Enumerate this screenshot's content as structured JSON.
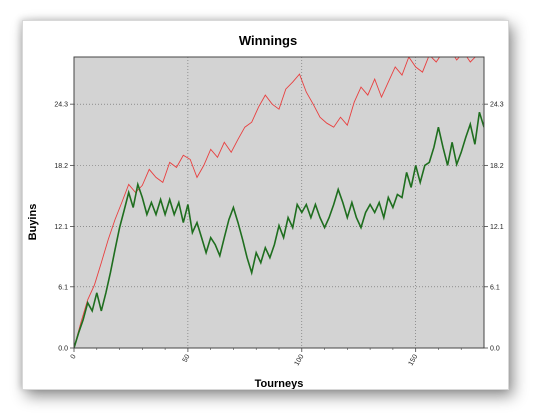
{
  "chart_data": {
    "type": "line",
    "title": "Winnings",
    "xlabel": "Tourneys",
    "ylabel": "Buyins",
    "xlim": [
      0,
      180
    ],
    "ylim": [
      0,
      29
    ],
    "x_ticks": [
      "0",
      "50",
      "100",
      "150"
    ],
    "y_ticks": [
      "0.0",
      "6.1",
      "12.1",
      "18.2",
      "24.3"
    ],
    "grid": true,
    "series": [
      {
        "color": "#e84040",
        "x": [
          0,
          3,
          6,
          9,
          12,
          15,
          18,
          21,
          24,
          27,
          30,
          33,
          36,
          39,
          42,
          45,
          48,
          51,
          54,
          57,
          60,
          63,
          66,
          69,
          72,
          75,
          78,
          81,
          84,
          87,
          90,
          93,
          96,
          99,
          102,
          105,
          108,
          111,
          114,
          117,
          120,
          123,
          126,
          129,
          132,
          135,
          138,
          141,
          144,
          147,
          150,
          153,
          156,
          159,
          162,
          165,
          168,
          171,
          174,
          177,
          180
        ],
        "y": [
          0,
          2.5,
          4.8,
          6.3,
          8.5,
          10.8,
          12.8,
          14.5,
          16.3,
          15.5,
          16.2,
          17.8,
          17.0,
          16.5,
          18.5,
          18.0,
          19.2,
          18.8,
          17.0,
          18.2,
          19.8,
          19.0,
          20.5,
          19.5,
          20.8,
          22.0,
          22.5,
          24.0,
          25.2,
          24.3,
          23.8,
          25.8,
          26.5,
          27.3,
          25.5,
          24.3,
          23.0,
          22.4,
          22.0,
          23.0,
          22.2,
          24.5,
          26.0,
          25.2,
          26.8,
          25.0,
          26.5,
          28.0,
          27.2,
          29.0,
          28.0,
          27.5,
          29.2,
          28.5,
          29.5,
          29.8,
          28.7,
          29.5,
          28.5,
          29.2,
          30.0
        ]
      },
      {
        "color": "#1f6e1f",
        "x": [
          0,
          2,
          4,
          6,
          8,
          10,
          12,
          14,
          16,
          18,
          20,
          22,
          24,
          26,
          28,
          30,
          32,
          34,
          36,
          38,
          40,
          42,
          44,
          46,
          48,
          50,
          52,
          54,
          56,
          58,
          60,
          62,
          64,
          66,
          68,
          70,
          72,
          74,
          76,
          78,
          80,
          82,
          84,
          86,
          88,
          90,
          92,
          94,
          96,
          98,
          100,
          102,
          104,
          106,
          108,
          110,
          112,
          114,
          116,
          118,
          120,
          122,
          124,
          126,
          128,
          130,
          132,
          134,
          136,
          138,
          140,
          142,
          144,
          146,
          148,
          150,
          152,
          154,
          156,
          158,
          160,
          162,
          164,
          166,
          168,
          170,
          172,
          174,
          176,
          178,
          180
        ],
        "y": [
          0,
          1.5,
          2.8,
          4.5,
          3.7,
          5.5,
          3.7,
          5.5,
          7.5,
          9.8,
          12.0,
          13.7,
          15.5,
          14.0,
          16.3,
          15.0,
          13.3,
          14.5,
          13.3,
          14.8,
          13.3,
          14.8,
          13.3,
          14.5,
          12.5,
          14.3,
          11.5,
          12.5,
          11.0,
          9.5,
          11.0,
          10.3,
          9.2,
          11.0,
          12.8,
          14.0,
          12.5,
          10.8,
          9.0,
          7.5,
          9.5,
          8.5,
          10.0,
          9.0,
          10.3,
          12.2,
          11.0,
          13.0,
          12.0,
          14.3,
          13.5,
          14.3,
          13.0,
          14.3,
          13.0,
          12.0,
          13.0,
          14.3,
          15.8,
          14.5,
          13.0,
          14.5,
          13.0,
          12.0,
          13.5,
          14.3,
          13.5,
          14.5,
          13.0,
          15.0,
          14.0,
          15.3,
          15.0,
          17.5,
          16.0,
          18.2,
          16.5,
          18.2,
          18.5,
          20.0,
          22.0,
          20.0,
          18.2,
          20.5,
          18.3,
          19.5,
          21.0,
          22.3,
          20.3,
          23.5,
          22.0
        ]
      }
    ]
  }
}
